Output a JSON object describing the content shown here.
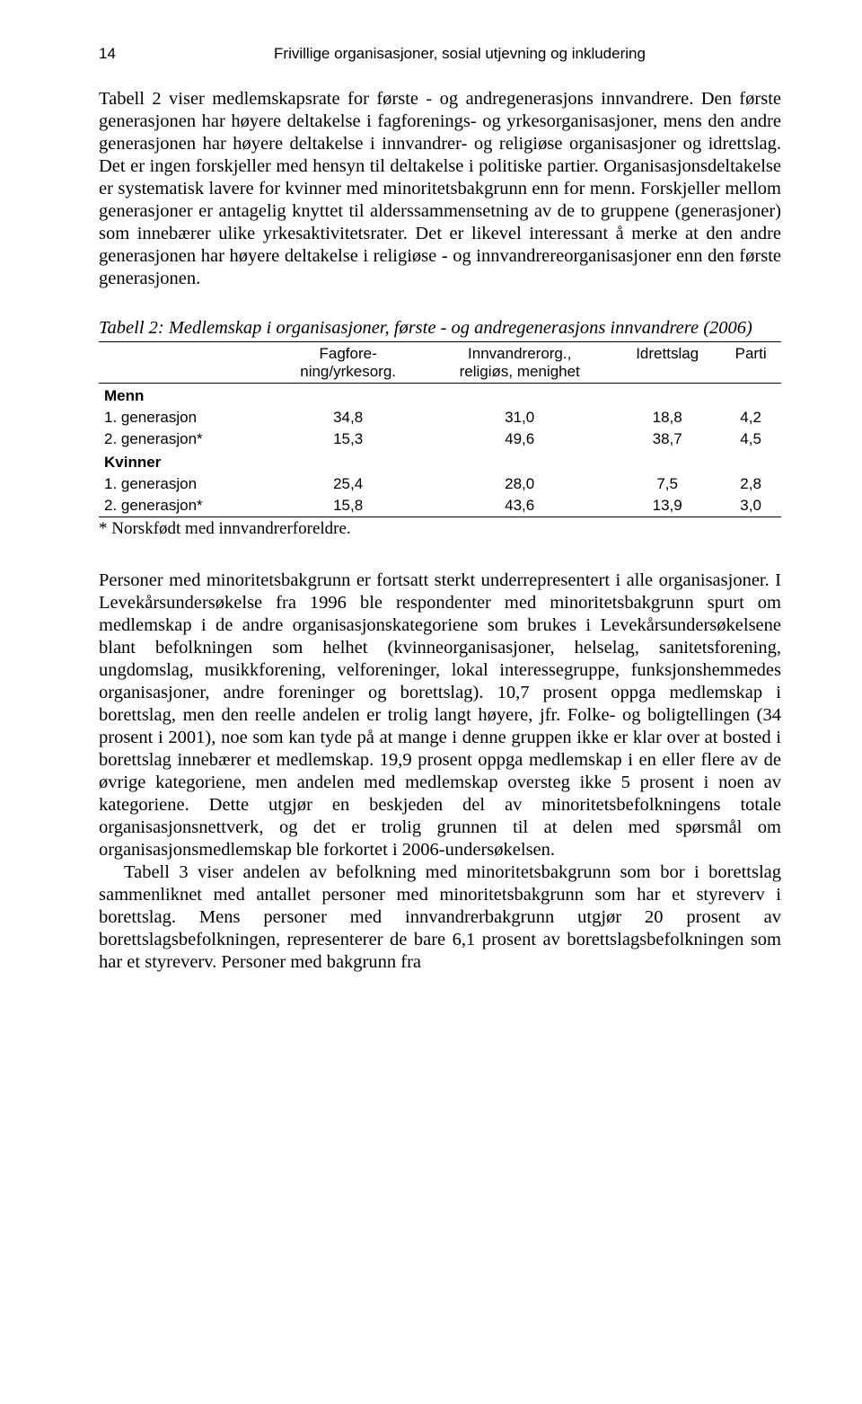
{
  "header": {
    "page_number": "14",
    "title": "Frivillige organisasjoner, sosial utjevning og inkludering"
  },
  "para1": "Tabell 2 viser medlemskapsrate for første - og andregenerasjons innvandrere. Den første generasjonen har høyere deltakelse i fagforenings- og yrkesorganisasjoner, mens den andre generasjonen har høyere deltakelse i innvandrer- og religiøse organisasjoner og idrettslag. Det er ingen forskjeller med hensyn til deltakelse i politiske partier. Organisasjonsdeltakelse er systematisk lavere for kvinner med minoritetsbakgrunn enn for menn. Forskjeller mellom generasjoner er antagelig knyttet til alderssammensetning av de to gruppene (generasjoner) som innebærer ulike yrkesaktivitetsrater. Det er likevel interessant å merke at den andre generasjonen har høyere deltakelse i religiøse - og innvandrereorganisasjoner enn den første generasjonen.",
  "table": {
    "title": "Tabell 2: Medlemskap i organisasjoner, første - og andregenerasjons innvandrere (2006)",
    "columns": {
      "c0": "",
      "c1_line1": "Fagfore-",
      "c1_line2": "ning/yrkesorg.",
      "c2_line1": "Innvandrerorg.,",
      "c2_line2": "religiøs, menighet",
      "c3": "Idrettslag",
      "c4": "Parti"
    },
    "sections": {
      "menn": "Menn",
      "kvinner": "Kvinner"
    },
    "rows": {
      "m1": {
        "label": "1. generasjon",
        "c1": "34,8",
        "c2": "31,0",
        "c3": "18,8",
        "c4": "4,2"
      },
      "m2": {
        "label": "2. generasjon*",
        "c1": "15,3",
        "c2": "49,6",
        "c3": "38,7",
        "c4": "4,5"
      },
      "k1": {
        "label": "1. generasjon",
        "c1": "25,4",
        "c2": "28,0",
        "c3": "7,5",
        "c4": "2,8"
      },
      "k2": {
        "label": "2. generasjon*",
        "c1": "15,8",
        "c2": "43,6",
        "c3": "13,9",
        "c4": "3,0"
      }
    },
    "note": "* Norskfødt med innvandrerforeldre."
  },
  "para2": "Personer med minoritetsbakgrunn er fortsatt sterkt underrepresentert i alle organisasjoner. I Levekårsundersøkelse fra 1996 ble respondenter med minoritetsbakgrunn spurt om medlemskap i de andre organisasjonskategoriene som brukes i Levekårsundersøkelsene blant befolkningen som helhet (kvinneorganisasjoner, helselag, sanitetsforening, ungdomslag, musikkforening, velforeninger, lokal interessegruppe, funksjonshemmedes organisasjoner, andre foreninger og borettslag). 10,7 prosent oppga medlemskap i borettslag, men den reelle andelen er trolig langt høyere, jfr. Folke- og boligtellingen (34 prosent i 2001), noe som kan tyde på at mange i denne gruppen ikke er klar over at bosted i borettslag innebærer et medlemskap. 19,9 prosent oppga medlemskap i en eller flere av de øvrige kategoriene, men andelen med medlemskap oversteg ikke 5 prosent i noen av kategoriene. Dette utgjør en beskjeden del av minoritetsbefolkningens totale organisasjonsnettverk, og det er trolig grunnen til at delen med spørsmål om organisasjonsmedlemskap ble forkortet i 2006-undersøkelsen.",
  "para3": "Tabell 3 viser andelen av befolkning med minoritetsbakgrunn som bor i borettslag sammenliknet med antallet personer med minoritetsbakgrunn som har et styreverv i borettslag. Mens personer med innvandrerbakgrunn utgjør 20 prosent av borettslagsbefolkningen, representerer de bare 6,1 prosent av borettslagsbefolkningen som har et styreverv. Personer med bakgrunn fra"
}
